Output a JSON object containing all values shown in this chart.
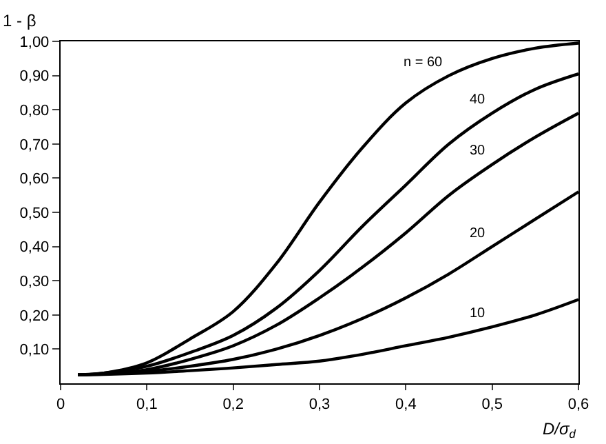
{
  "chart_data": {
    "type": "line",
    "xlabel": "D/σ$_{d}$",
    "ylabel": "1 - β",
    "x": [
      0.02,
      0.05,
      0.1,
      0.15,
      0.2,
      0.25,
      0.3,
      0.35,
      0.4,
      0.45,
      0.5,
      0.55,
      0.6
    ],
    "series": [
      {
        "name": "n = 60",
        "color": "#000000",
        "values": [
          0.025,
          0.03,
          0.06,
          0.13,
          0.21,
          0.35,
          0.53,
          0.69,
          0.82,
          0.9,
          0.95,
          0.98,
          0.995
        ]
      },
      {
        "name": "40",
        "color": "#000000",
        "values": [
          0.025,
          0.03,
          0.05,
          0.09,
          0.14,
          0.22,
          0.33,
          0.46,
          0.58,
          0.7,
          0.79,
          0.86,
          0.905
        ]
      },
      {
        "name": "30",
        "color": "#000000",
        "values": [
          0.025,
          0.028,
          0.04,
          0.07,
          0.11,
          0.17,
          0.25,
          0.34,
          0.44,
          0.55,
          0.64,
          0.72,
          0.79
        ]
      },
      {
        "name": "20",
        "color": "#000000",
        "values": [
          0.025,
          0.027,
          0.035,
          0.05,
          0.07,
          0.1,
          0.14,
          0.19,
          0.25,
          0.32,
          0.4,
          0.48,
          0.56
        ]
      },
      {
        "name": "10",
        "color": "#000000",
        "values": [
          0.025,
          0.026,
          0.03,
          0.037,
          0.045,
          0.055,
          0.065,
          0.085,
          0.11,
          0.135,
          0.165,
          0.2,
          0.245
        ]
      }
    ],
    "xlim": [
      0,
      0.6
    ],
    "ylim": [
      0,
      1.0
    ],
    "xticks": [
      {
        "value": 0,
        "label": "0"
      },
      {
        "value": 0.1,
        "label": "0,1"
      },
      {
        "value": 0.2,
        "label": "0,2"
      },
      {
        "value": 0.3,
        "label": "0,3"
      },
      {
        "value": 0.4,
        "label": "0,4"
      },
      {
        "value": 0.5,
        "label": "0,5"
      },
      {
        "value": 0.6,
        "label": "0,6"
      }
    ],
    "yticks": [
      {
        "value": 0.1,
        "label": "0,10"
      },
      {
        "value": 0.2,
        "label": "0,20"
      },
      {
        "value": 0.3,
        "label": "0,30"
      },
      {
        "value": 0.4,
        "label": "0,40"
      },
      {
        "value": 0.5,
        "label": "0,50"
      },
      {
        "value": 0.6,
        "label": "0,60"
      },
      {
        "value": 0.7,
        "label": "0,70"
      },
      {
        "value": 0.8,
        "label": "0,80"
      },
      {
        "value": 0.9,
        "label": "0,90"
      },
      {
        "value": 1.0,
        "label": "1,00"
      }
    ],
    "legend": false,
    "marker": "none",
    "line_style": "solid"
  }
}
